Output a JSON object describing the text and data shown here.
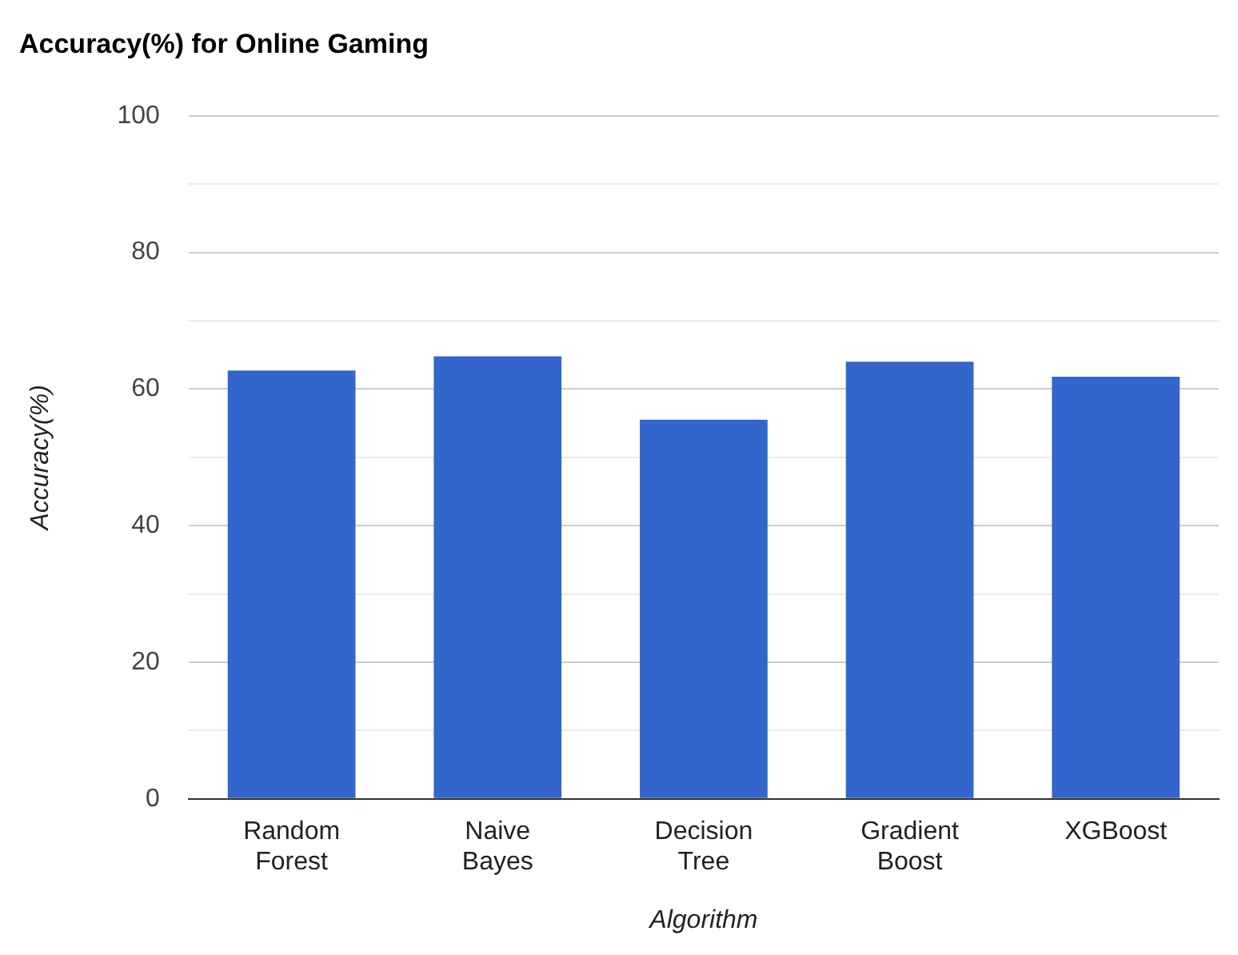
{
  "chart_data": {
    "type": "bar",
    "title": "Accuracy(%) for Online Gaming",
    "xlabel": "Algorithm",
    "ylabel": "Accuracy(%)",
    "categories": [
      "Random Forest",
      "Naive Bayes",
      "Decision Tree",
      "Gradient Boost",
      "XGBoost"
    ],
    "values": [
      62.7,
      64.8,
      55.5,
      64.0,
      61.8
    ],
    "color": "#3366cc",
    "ylim": [
      0,
      100
    ],
    "yticks": [
      0,
      {
        "value": 10,
        "label": null
      },
      20,
      {
        "value": 30,
        "label": null
      },
      40,
      {
        "value": 50,
        "label": null
      },
      60,
      {
        "value": 70,
        "label": null
      },
      80,
      {
        "value": 90,
        "label": null
      },
      100
    ],
    "grid": "y"
  }
}
